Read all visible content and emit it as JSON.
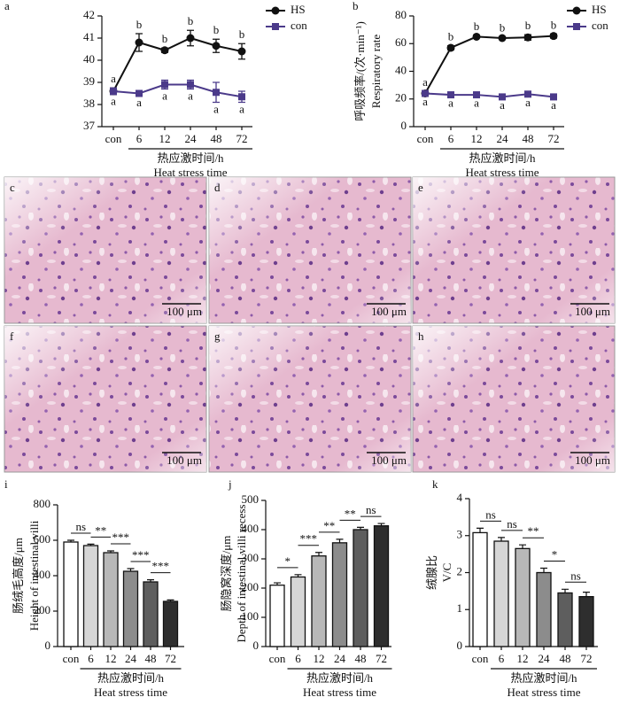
{
  "chart_data": [
    {
      "type": "line",
      "panel": "a",
      "categories": [
        "con",
        "6",
        "12",
        "24",
        "48",
        "72"
      ],
      "xlabel": [
        "热应激时间/h",
        "Heat stress time"
      ],
      "ylim": [
        37,
        42
      ],
      "yticks": [
        37,
        38,
        39,
        40,
        41,
        42
      ],
      "series": [
        {
          "name": "HS",
          "color": "#111111",
          "marker": "circle",
          "values": [
            38.6,
            40.8,
            40.45,
            41.0,
            40.65,
            40.4
          ],
          "errors": [
            0.15,
            0.4,
            0.1,
            0.35,
            0.3,
            0.35
          ],
          "letters": [
            "a",
            "b",
            "b",
            "b",
            "b",
            "b"
          ]
        },
        {
          "name": "con",
          "color": "#4b3a8a",
          "marker": "square",
          "values": [
            38.6,
            38.5,
            38.9,
            38.9,
            38.55,
            38.35
          ],
          "errors": [
            0.15,
            0.1,
            0.2,
            0.2,
            0.45,
            0.25
          ],
          "letters": [
            "a",
            "a",
            "a",
            "a",
            "a",
            "a"
          ]
        }
      ]
    },
    {
      "type": "line",
      "panel": "b",
      "categories": [
        "con",
        "6",
        "12",
        "24",
        "48",
        "72"
      ],
      "xlabel": [
        "热应激时间/h",
        "Heat stress time"
      ],
      "ylabel": [
        "呼吸频率/(次·min⁻¹)",
        "Respiratory rate"
      ],
      "ylim": [
        0,
        80
      ],
      "yticks": [
        0,
        20,
        40,
        60,
        80
      ],
      "series": [
        {
          "name": "HS",
          "color": "#111111",
          "marker": "circle",
          "values": [
            24,
            57,
            65,
            64,
            64.5,
            65.5
          ],
          "errors": [
            1.5,
            1.5,
            1,
            1,
            2,
            1.5
          ],
          "letters": [
            "a",
            "b",
            "b",
            "b",
            "b",
            "b"
          ]
        },
        {
          "name": "con",
          "color": "#4b3a8a",
          "marker": "square",
          "values": [
            24,
            23,
            23,
            21.5,
            23.5,
            21.5
          ],
          "errors": [
            1,
            1,
            1,
            1,
            1,
            1
          ],
          "letters": [
            "a",
            "a",
            "a",
            "a",
            "a",
            "a"
          ]
        }
      ]
    },
    {
      "type": "bar",
      "panel": "i",
      "categories": [
        "con",
        "6",
        "12",
        "24",
        "48",
        "72"
      ],
      "xlabel": [
        "热应激时间/h",
        "Heat stress time"
      ],
      "ylabel": [
        "肠绒毛高度/μm",
        "Height of intestinal villi"
      ],
      "ylim": [
        0,
        800
      ],
      "yticks": [
        0,
        200,
        400,
        600,
        800
      ],
      "values": [
        590,
        570,
        530,
        425,
        365,
        255
      ],
      "errors": [
        10,
        8,
        10,
        15,
        12,
        8
      ],
      "colors": [
        "#ffffff",
        "#d6d6d6",
        "#b8b8b8",
        "#8c8c8c",
        "#5e5e5e",
        "#2e2e2e"
      ],
      "significance": [
        "ns",
        "**",
        "***",
        "***",
        "***"
      ]
    },
    {
      "type": "bar",
      "panel": "j",
      "categories": [
        "con",
        "6",
        "12",
        "24",
        "48",
        "72"
      ],
      "xlabel": [
        "热应激时间/h",
        "Heat stress time"
      ],
      "ylabel": [
        "肠隐窝深度/μm",
        "Depth of intestinal villi recess"
      ],
      "ylim": [
        0,
        500
      ],
      "yticks": [
        0,
        100,
        200,
        300,
        400,
        500
      ],
      "values": [
        210,
        238,
        310,
        355,
        400,
        413
      ],
      "errors": [
        8,
        8,
        12,
        12,
        8,
        8
      ],
      "colors": [
        "#ffffff",
        "#d6d6d6",
        "#b8b8b8",
        "#8c8c8c",
        "#5e5e5e",
        "#2e2e2e"
      ],
      "significance": [
        "*",
        "***",
        "**",
        "**",
        "ns"
      ]
    },
    {
      "type": "bar",
      "panel": "k",
      "categories": [
        "con",
        "6",
        "12",
        "24",
        "48",
        "72"
      ],
      "xlabel": [
        "热应激时间/h",
        "Heat stress time"
      ],
      "ylabel": [
        "绒腺比",
        "V/C"
      ],
      "ylim": [
        0,
        4
      ],
      "yticks": [
        0,
        1,
        2,
        3,
        4
      ],
      "values": [
        3.08,
        2.85,
        2.65,
        2.0,
        1.45,
        1.35
      ],
      "errors": [
        0.12,
        0.1,
        0.1,
        0.12,
        0.1,
        0.12
      ],
      "colors": [
        "#ffffff",
        "#d6d6d6",
        "#b8b8b8",
        "#8c8c8c",
        "#5e5e5e",
        "#2e2e2e"
      ],
      "significance": [
        "ns",
        "ns",
        "**",
        "*",
        "ns"
      ]
    }
  ],
  "micrographs": [
    {
      "label": "c",
      "scale": "100 μm"
    },
    {
      "label": "d",
      "scale": "100 μm"
    },
    {
      "label": "e",
      "scale": "100 μm"
    },
    {
      "label": "f",
      "scale": "100 μm"
    },
    {
      "label": "g",
      "scale": "100 μm"
    },
    {
      "label": "h",
      "scale": "100 μm"
    }
  ]
}
